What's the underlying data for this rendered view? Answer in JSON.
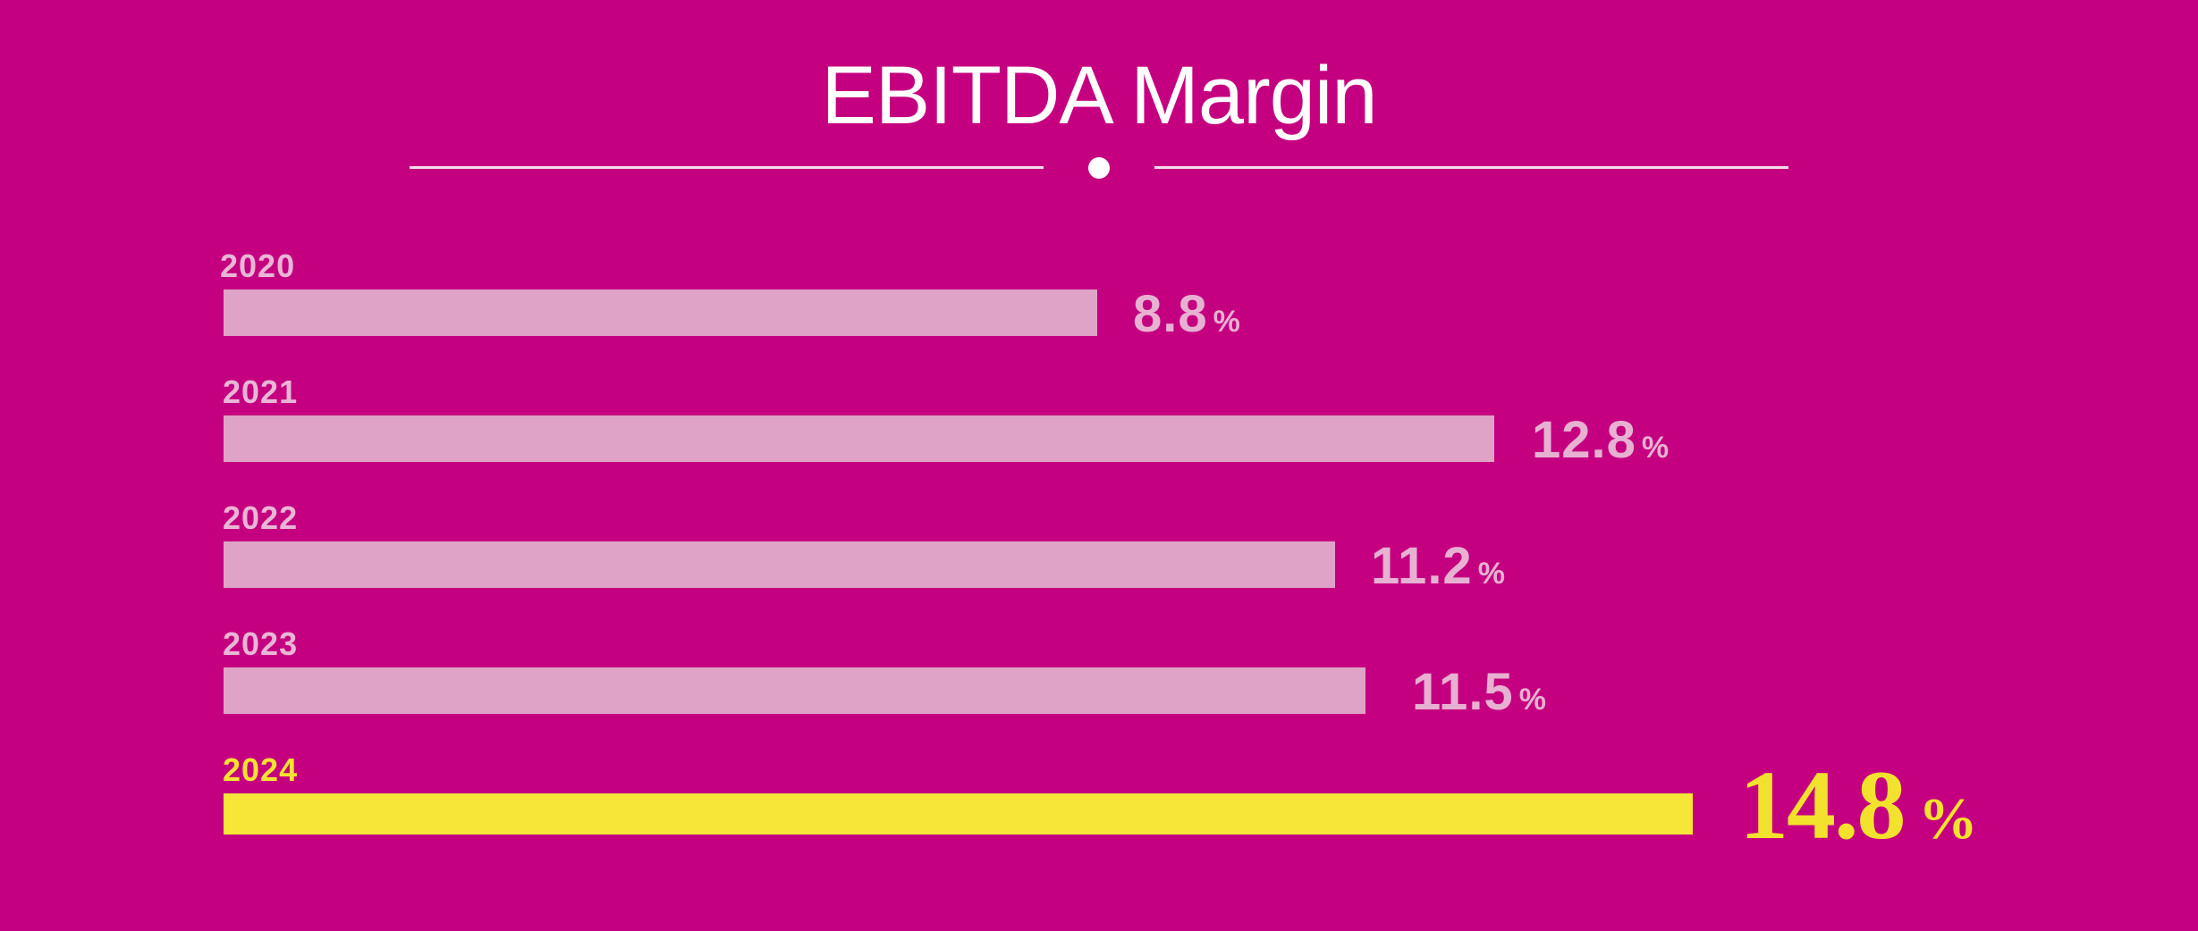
{
  "chart_data": {
    "type": "bar",
    "orientation": "horizontal",
    "title": "EBITDA Margin",
    "xlabel": "",
    "ylabel": "",
    "categories": [
      "2020",
      "2021",
      "2022",
      "2023",
      "2024"
    ],
    "values": [
      8.8,
      12.8,
      11.2,
      11.5,
      14.8
    ],
    "value_labels": [
      "8.8",
      "12.8",
      "11.2",
      "11.5",
      "14.8"
    ],
    "unit": "%",
    "highlight_index": 4,
    "grid": false,
    "legend": "none",
    "colors": {
      "background": "#c50080",
      "bar": "#dea3c6",
      "highlight": "#f5e637",
      "title": "#ffffff"
    }
  }
}
